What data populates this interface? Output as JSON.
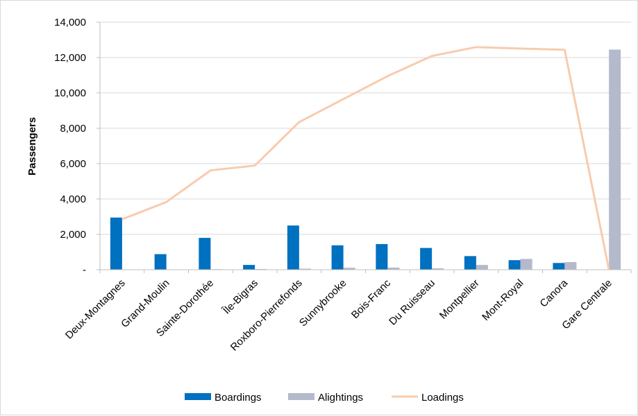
{
  "chart_data": {
    "type": "bar",
    "title": "",
    "xlabel": "",
    "ylabel": "Passengers",
    "ylim": [
      0,
      14000
    ],
    "yticks": [
      0,
      2000,
      4000,
      6000,
      8000,
      10000,
      12000,
      14000
    ],
    "ytick_labels": [
      "-",
      "2,000",
      "4,000",
      "6,000",
      "8,000",
      "10,000",
      "12,000",
      "14,000"
    ],
    "grid": true,
    "legend_position": "bottom",
    "categories": [
      "Deux-Montagnes",
      "Grand-Moulin",
      "Sainte-Dorothée",
      "Île-Bigras",
      "Roxboro-Pierrefonds",
      "Sunnybrooke",
      "Bois-Franc",
      "Du Ruisseau",
      "Montpellier",
      "Mont-Royal",
      "Canora",
      "Gare Centrale"
    ],
    "series": [
      {
        "name": "Boardings",
        "kind": "bar",
        "color": "#0070c0",
        "values": [
          2950,
          880,
          1800,
          270,
          2500,
          1380,
          1450,
          1230,
          770,
          540,
          380,
          0
        ]
      },
      {
        "name": "Alightings",
        "kind": "bar",
        "color": "#b4b9cc",
        "values": [
          0,
          10,
          30,
          40,
          60,
          110,
          120,
          80,
          270,
          610,
          430,
          12450
        ]
      },
      {
        "name": "Loadings",
        "kind": "line",
        "color": "#f8cbad",
        "values": [
          2850,
          3830,
          5620,
          5890,
          8350,
          9650,
          10950,
          12090,
          12590,
          12510,
          12440,
          0
        ]
      }
    ]
  }
}
